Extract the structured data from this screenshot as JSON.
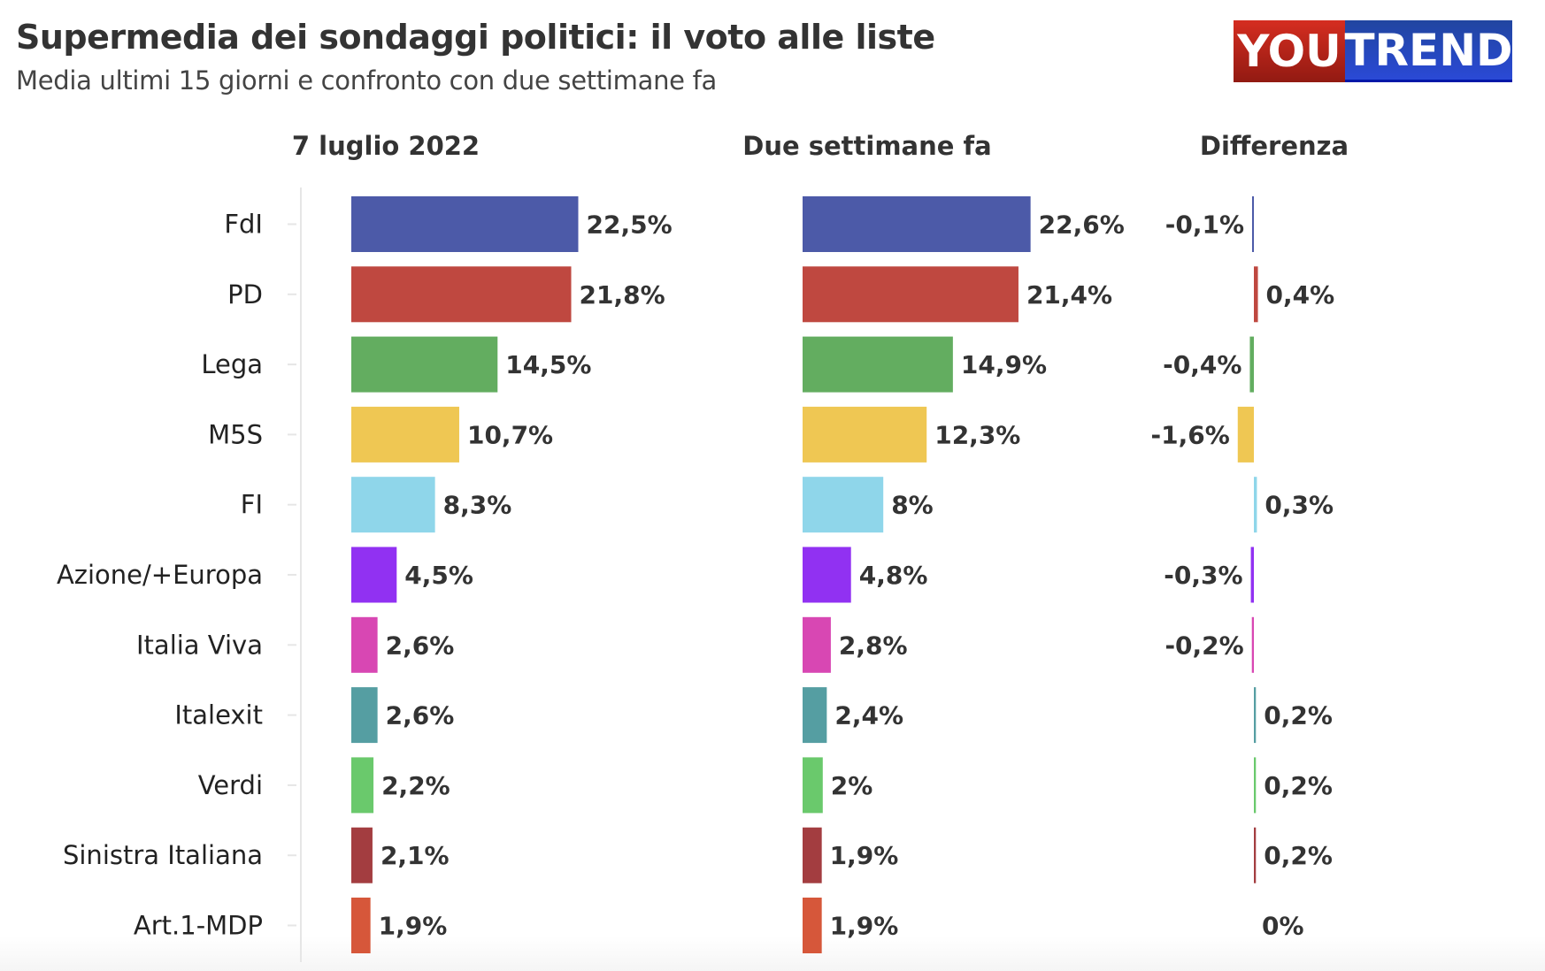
{
  "header": {
    "title": "Supermedia dei sondaggi politici: il voto alle liste",
    "subtitle": "Media ultimi 15 giorni e confronto con due settimane fa",
    "logo_text": [
      "YOU",
      "TREND"
    ]
  },
  "chart_data": {
    "type": "bar",
    "orientation": "horizontal",
    "categories": [
      "FdI",
      "PD",
      "Lega",
      "M5S",
      "FI",
      "Azione/+Europa",
      "Italia Viva",
      "Italexit",
      "Verdi",
      "Sinistra Italiana",
      "Art.1-MDP"
    ],
    "colors": [
      "#4c5aa8",
      "#bf4840",
      "#63ad60",
      "#efc753",
      "#8fd6ea",
      "#9131f2",
      "#d847b3",
      "#559ea2",
      "#6ac96c",
      "#a33d40",
      "#d6573a"
    ],
    "series": [
      {
        "name": "7 luglio 2022",
        "values": [
          22.5,
          21.8,
          14.5,
          10.7,
          8.3,
          4.5,
          2.6,
          2.6,
          2.2,
          2.1,
          1.9
        ],
        "labels": [
          "22,5%",
          "21,8%",
          "14,5%",
          "10,7%",
          "8,3%",
          "4,5%",
          "2,6%",
          "2,6%",
          "2,2%",
          "2,1%",
          "1,9%"
        ]
      },
      {
        "name": "Due settimane fa",
        "values": [
          22.6,
          21.4,
          14.9,
          12.3,
          8.0,
          4.8,
          2.8,
          2.4,
          2.0,
          1.9,
          1.9
        ],
        "labels": [
          "22,6%",
          "21,4%",
          "14,9%",
          "12,3%",
          "8%",
          "4,8%",
          "2,8%",
          "2,4%",
          "2%",
          "1,9%",
          "1,9%"
        ]
      },
      {
        "name": "Differenza",
        "values": [
          -0.1,
          0.4,
          -0.4,
          -1.6,
          0.3,
          -0.3,
          -0.2,
          0.2,
          0.2,
          0.2,
          0
        ],
        "labels": [
          "-0,1%",
          "0,4%",
          "-0,4%",
          "-1,6%",
          "0,3%",
          "-0,3%",
          "-0,2%",
          "0,2%",
          "0,2%",
          "0,2%",
          "0%"
        ]
      }
    ],
    "grid": false,
    "legend": "none"
  }
}
